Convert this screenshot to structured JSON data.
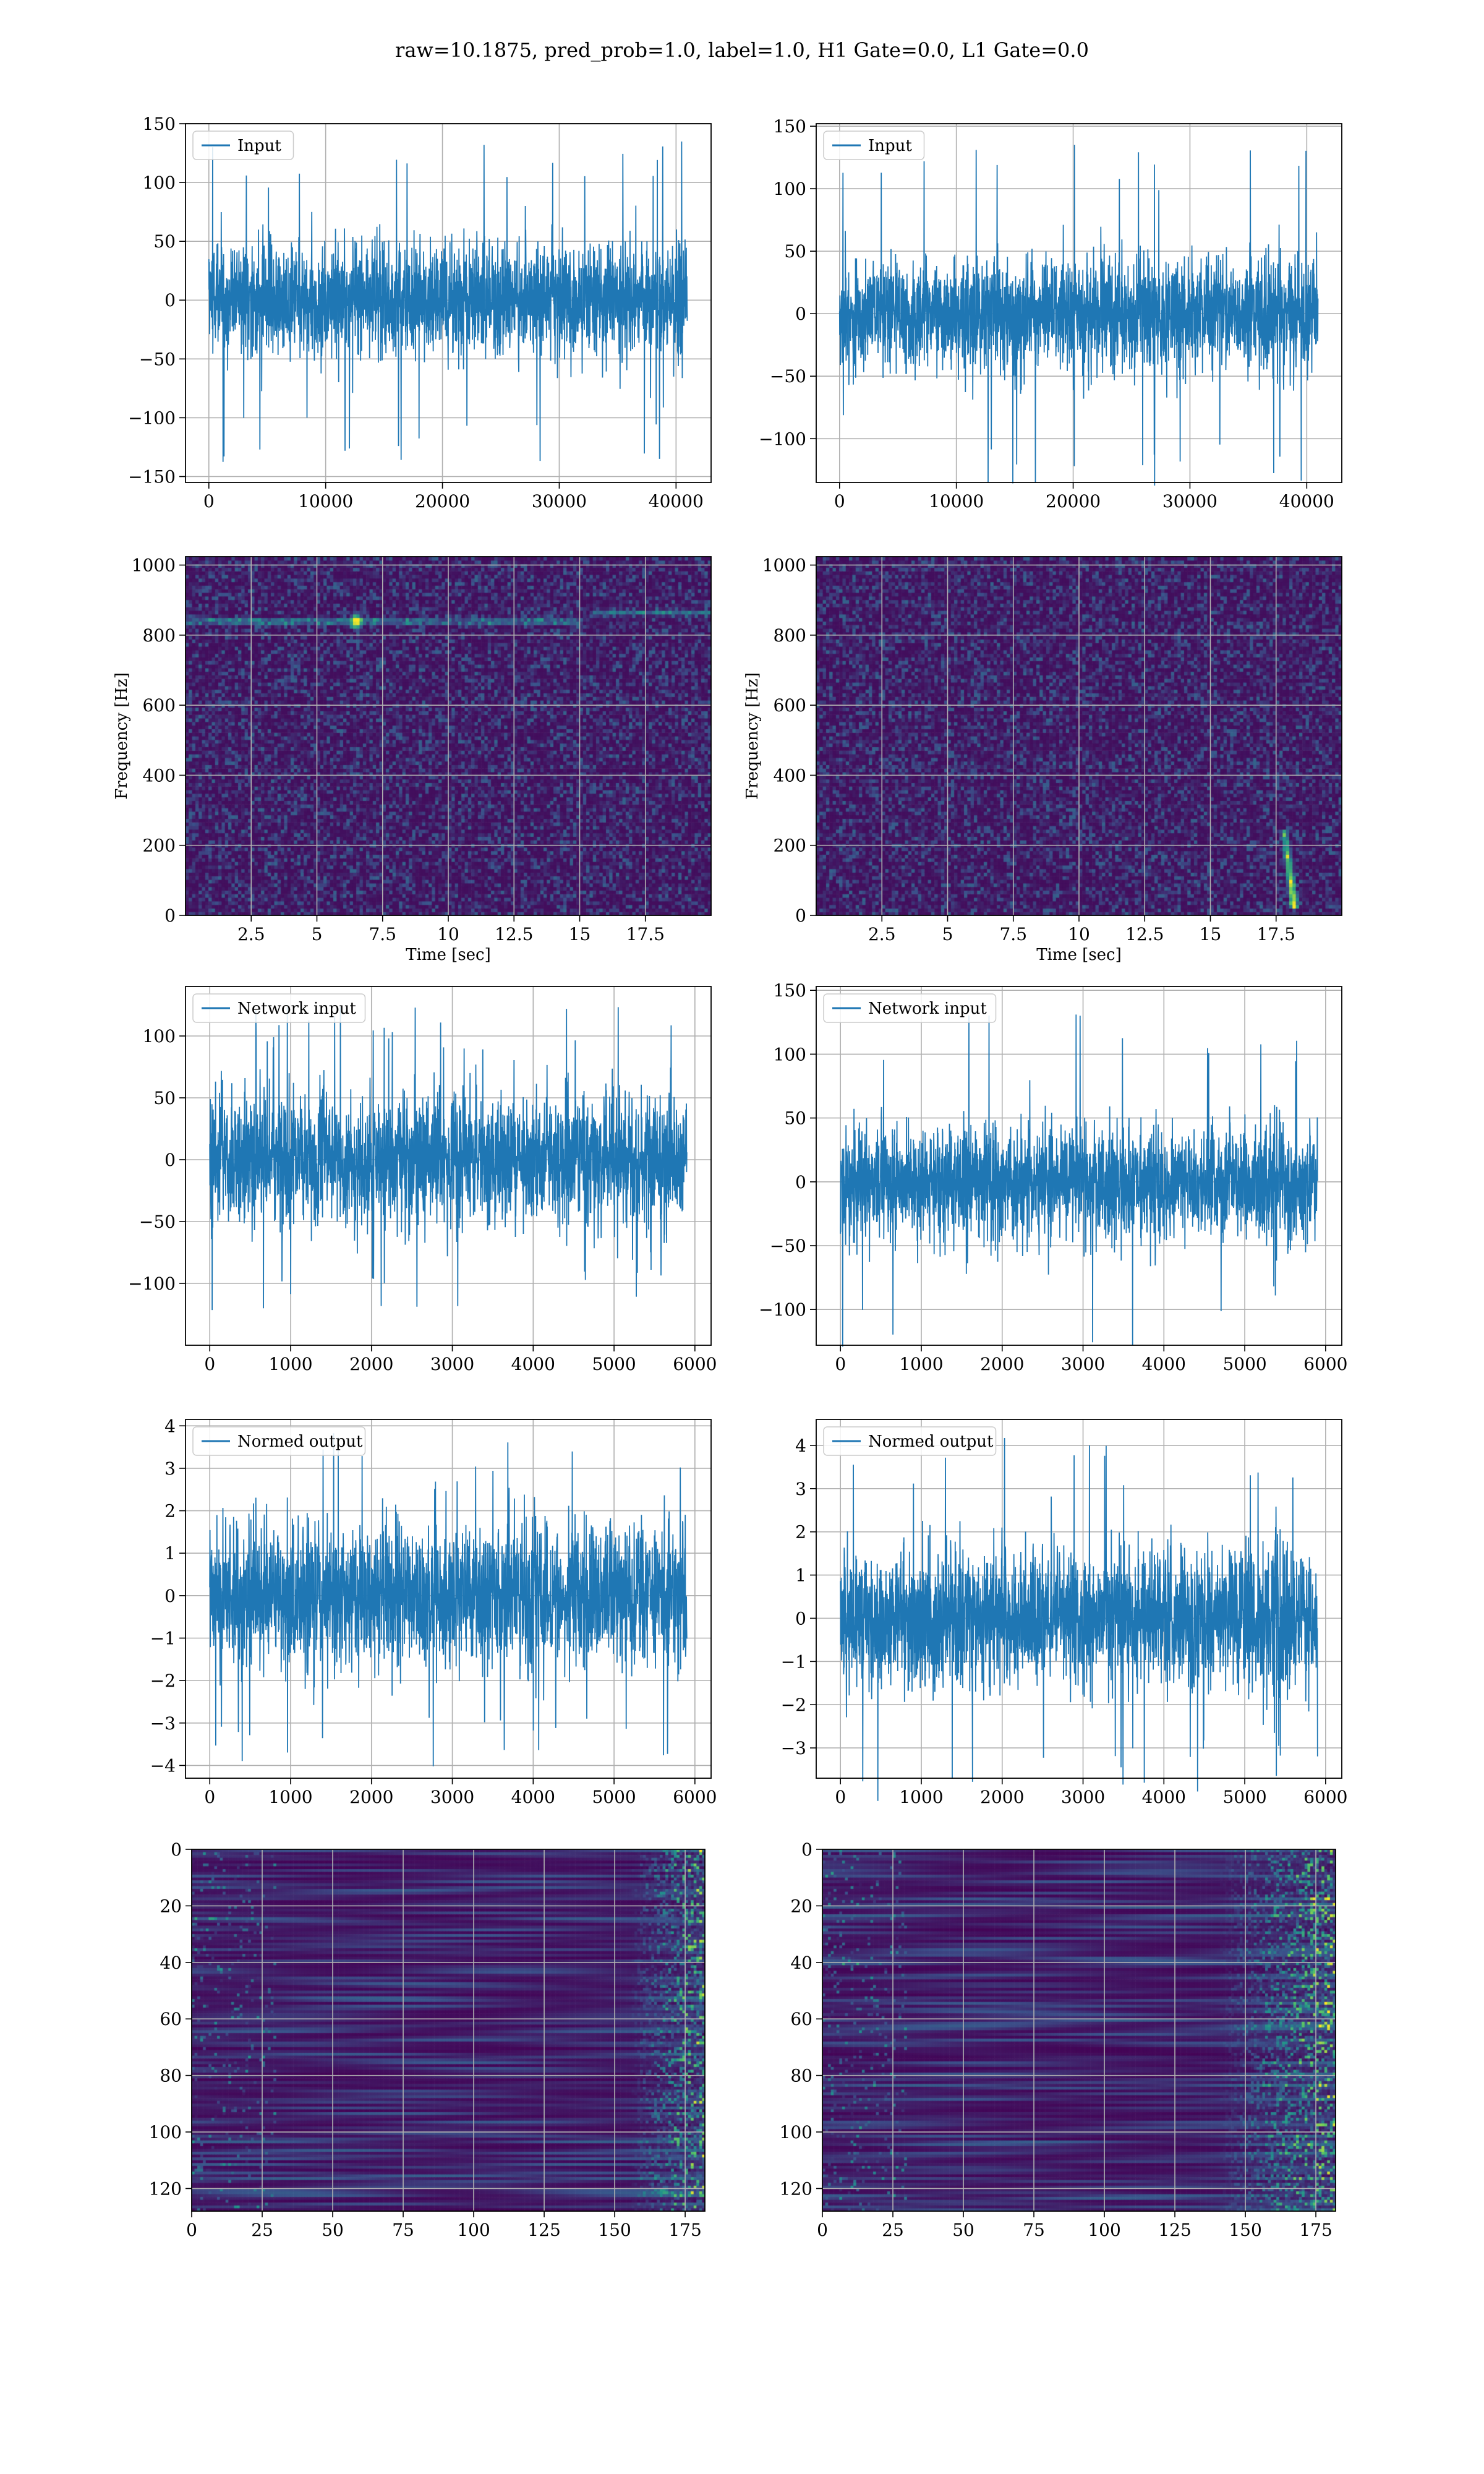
{
  "figure": {
    "title": "raw=10.1875, pred_prob=1.0, label=1.0, H1 Gate=0.0, L1 Gate=0.0"
  },
  "colors": {
    "line": "#1f77b4",
    "grid": "#b0b0b0",
    "viridis_low": "#440154",
    "viridis_mid": "#21918c",
    "viridis_high": "#fde725"
  },
  "chart_data": [
    {
      "id": "input_h1",
      "type": "line",
      "style": "noise",
      "legend": "Input",
      "legend_position": "upper left",
      "n_samples": 40960,
      "amplitude_rms": 24,
      "spike_max": 140,
      "xlim": [
        -2000,
        43000
      ],
      "ylim": [
        -155,
        150
      ],
      "xticks": [
        0,
        10000,
        20000,
        30000,
        40000
      ],
      "yticks": [
        -150,
        -100,
        -50,
        0,
        50,
        100,
        150
      ],
      "xlabel": "",
      "ylabel": "",
      "grid": true
    },
    {
      "id": "input_l1",
      "type": "line",
      "style": "noise",
      "legend": "Input",
      "legend_position": "upper left",
      "n_samples": 40960,
      "amplitude_rms": 22,
      "spike_max": 140,
      "xlim": [
        -2000,
        43000
      ],
      "ylim": [
        -135,
        152
      ],
      "xticks": [
        0,
        10000,
        20000,
        30000,
        40000
      ],
      "yticks": [
        -100,
        -50,
        0,
        50,
        100,
        150
      ],
      "xlabel": "",
      "ylabel": "",
      "grid": true
    },
    {
      "id": "spec_h1",
      "type": "heatmap",
      "style": "spectrogram",
      "colormap": "viridis",
      "xlim": [
        0,
        20
      ],
      "ylim": [
        0,
        1024
      ],
      "xticks": [
        2.5,
        5.0,
        7.5,
        10.0,
        12.5,
        15.0,
        17.5
      ],
      "yticks": [
        0,
        200,
        400,
        600,
        800,
        1000
      ],
      "xlabel": "Time [sec]",
      "ylabel": "Frequency [Hz]",
      "grid": true,
      "features": [
        {
          "kind": "line",
          "frequency": 840,
          "t_from": 0,
          "t_to": 15,
          "strength": 0.5
        },
        {
          "kind": "line",
          "frequency": 865,
          "t_from": 15.5,
          "t_to": 20,
          "strength": 0.4
        },
        {
          "kind": "spot",
          "t": 6.5,
          "frequency": 840,
          "strength": 1.0
        }
      ]
    },
    {
      "id": "spec_l1",
      "type": "heatmap",
      "style": "spectrogram",
      "colormap": "viridis",
      "xlim": [
        0,
        20
      ],
      "ylim": [
        0,
        1024
      ],
      "xticks": [
        2.5,
        5.0,
        7.5,
        10.0,
        12.5,
        15.0,
        17.5
      ],
      "yticks": [
        0,
        200,
        400,
        600,
        800,
        1000
      ],
      "xlabel": "Time [sec]",
      "ylabel": "Frequency [Hz]",
      "grid": true,
      "features": [
        {
          "kind": "chirp",
          "t": 18.2,
          "f_from": 20,
          "f_to": 250,
          "strength": 1.0
        }
      ]
    },
    {
      "id": "netin_h1",
      "type": "line",
      "style": "noise",
      "legend": "Network input",
      "legend_position": "upper left",
      "n_samples": 5900,
      "amplitude_rms": 26,
      "spike_max": 125,
      "xlim": [
        -300,
        6200
      ],
      "ylim": [
        -150,
        140
      ],
      "xticks": [
        0,
        1000,
        2000,
        3000,
        4000,
        5000,
        6000
      ],
      "yticks": [
        -100,
        -50,
        0,
        50,
        100
      ],
      "xlabel": "",
      "ylabel": "",
      "grid": true
    },
    {
      "id": "netin_l1",
      "type": "line",
      "style": "noise",
      "legend": "Network input",
      "legend_position": "upper left",
      "n_samples": 5900,
      "amplitude_rms": 22,
      "spike_max": 135,
      "burst_at": 5400,
      "xlim": [
        -300,
        6200
      ],
      "ylim": [
        -128,
        153
      ],
      "xticks": [
        0,
        1000,
        2000,
        3000,
        4000,
        5000,
        6000
      ],
      "yticks": [
        -100,
        -50,
        0,
        50,
        100,
        150
      ],
      "xlabel": "",
      "ylabel": "",
      "grid": true
    },
    {
      "id": "normed_h1",
      "type": "line",
      "style": "noise",
      "legend": "Normed output",
      "legend_position": "upper left",
      "n_samples": 5900,
      "amplitude_rms": 0.85,
      "spike_max": 4.1,
      "xlim": [
        -300,
        6200
      ],
      "ylim": [
        -4.3,
        4.15
      ],
      "xticks": [
        0,
        1000,
        2000,
        3000,
        4000,
        5000,
        6000
      ],
      "yticks": [
        -4,
        -3,
        -2,
        -1,
        0,
        1,
        2,
        3,
        4
      ],
      "xlabel": "",
      "ylabel": "",
      "grid": true
    },
    {
      "id": "normed_l1",
      "type": "line",
      "style": "noise",
      "legend": "Normed output",
      "legend_position": "upper left",
      "n_samples": 5900,
      "amplitude_rms": 0.8,
      "spike_max": 4.3,
      "burst_at": 5400,
      "xlim": [
        -300,
        6200
      ],
      "ylim": [
        -3.7,
        4.6
      ],
      "xticks": [
        0,
        1000,
        2000,
        3000,
        4000,
        5000,
        6000
      ],
      "yticks": [
        -3,
        -2,
        -1,
        0,
        1,
        2,
        3,
        4
      ],
      "xlabel": "",
      "ylabel": "",
      "grid": true
    },
    {
      "id": "feat_h1",
      "type": "heatmap",
      "style": "features",
      "colormap": "viridis",
      "rows": 128,
      "cols": 182,
      "xlim": [
        0,
        182
      ],
      "ylim": [
        128,
        0
      ],
      "y_inverted": true,
      "xticks": [
        0,
        25,
        50,
        75,
        100,
        125,
        150,
        175
      ],
      "yticks": [
        0,
        20,
        40,
        60,
        80,
        100,
        120
      ],
      "xlabel": "",
      "ylabel": "",
      "grid": true,
      "hot_region_start": 155
    },
    {
      "id": "feat_l1",
      "type": "heatmap",
      "style": "features",
      "colormap": "viridis",
      "rows": 128,
      "cols": 182,
      "xlim": [
        0,
        182
      ],
      "ylim": [
        128,
        0
      ],
      "y_inverted": true,
      "xticks": [
        0,
        25,
        50,
        75,
        100,
        125,
        150,
        175
      ],
      "yticks": [
        0,
        20,
        40,
        60,
        80,
        100,
        120
      ],
      "xlabel": "",
      "ylabel": "",
      "grid": true,
      "hot_region_start": 140
    }
  ]
}
